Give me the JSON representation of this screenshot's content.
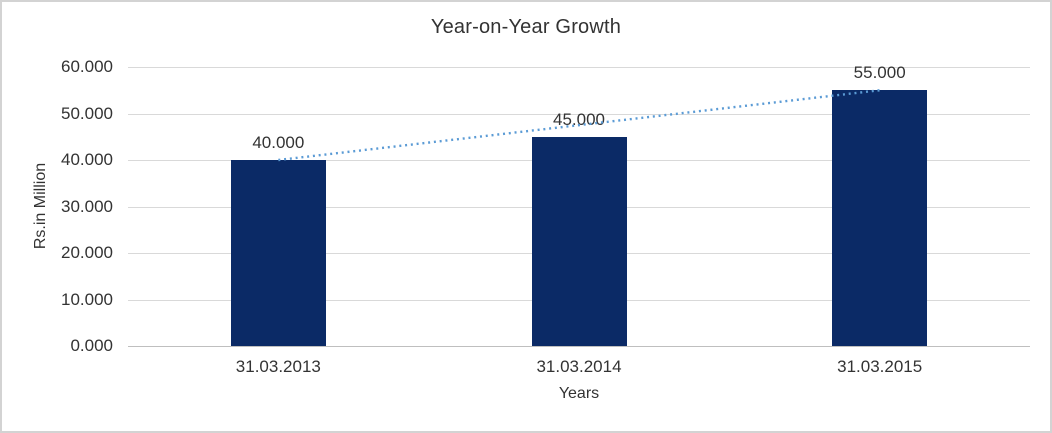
{
  "chart_data": {
    "type": "bar",
    "title": "Year-on-Year Growth",
    "categories": [
      "31.03.2013",
      "31.03.2014",
      "31.03.2015"
    ],
    "values": [
      40000,
      45000,
      55000
    ],
    "data_labels": [
      "40.000",
      "45.000",
      "55.000"
    ],
    "xlabel": "Years",
    "ylabel": "Rs.in Million",
    "ylim": [
      0,
      60000
    ],
    "yticks": [
      0,
      10000,
      20000,
      30000,
      40000,
      50000,
      60000
    ],
    "ytick_labels": [
      "0.000",
      "10.000",
      "20.000",
      "30.000",
      "40.000",
      "50.000",
      "60.000"
    ],
    "grid": true,
    "legend": "none",
    "trendline": {
      "type": "linear",
      "style": "dotted",
      "color": "#5B9BD5",
      "from_category": "31.03.2013",
      "to_category": "31.03.2015"
    },
    "colors": {
      "bar": "#0B2A66",
      "trendline": "#5B9BD5",
      "gridline": "#D9D9D9",
      "axis_line": "#BFBFBF",
      "text": "#333333",
      "chart_border": "#D3D3D3",
      "background": "#FFFFFF"
    }
  }
}
